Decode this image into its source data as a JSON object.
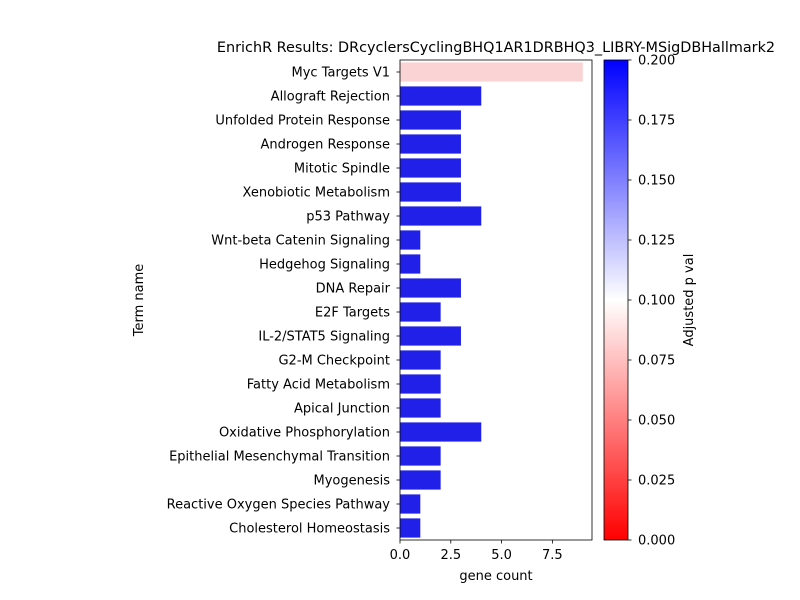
{
  "chart_data": {
    "type": "bar",
    "orientation": "horizontal",
    "title": "EnrichR Results: DRcyclersCyclingBHQ1AR1DRBHQ3_LIBRY-MSigDBHallmark2",
    "xlabel": "gene count",
    "ylabel": "Term name",
    "xlim": [
      0,
      9.45
    ],
    "xticks": [
      0,
      2.5,
      5,
      7.5
    ],
    "xtick_labels": [
      "0.0",
      "2.5",
      "5.0",
      "7.5"
    ],
    "grid": false,
    "categories": [
      "Myc Targets V1",
      "Allograft Rejection",
      "Unfolded Protein Response",
      "Androgen Response",
      "Mitotic Spindle",
      "Xenobiotic Metabolism",
      "p53 Pathway",
      "Wnt-beta Catenin Signaling",
      "Hedgehog Signaling",
      "DNA Repair",
      "E2F Targets",
      "IL-2/STAT5 Signaling",
      "G2-M Checkpoint",
      "Fatty Acid Metabolism",
      "Apical Junction",
      "Oxidative Phosphorylation",
      "Epithelial Mesenchymal Transition",
      "Myogenesis",
      "Reactive Oxygen Species Pathway",
      "Cholesterol Homeostasis"
    ],
    "values": [
      9,
      4,
      3,
      3,
      3,
      3,
      4,
      1,
      1,
      3,
      2,
      3,
      2,
      2,
      2,
      4,
      2,
      2,
      1,
      1
    ],
    "bar_colors": [
      "#fad4d4",
      "#2020e8",
      "#2020e8",
      "#2020e8",
      "#2020e8",
      "#2020e8",
      "#2020e8",
      "#2020e8",
      "#2020e8",
      "#2020e8",
      "#2020e8",
      "#2020e8",
      "#2020e8",
      "#2020e8",
      "#2020e8",
      "#2020e8",
      "#2020e8",
      "#2020e8",
      "#2020e8",
      "#2020e8"
    ],
    "colorbar": {
      "label": "Adjusted p val",
      "range": [
        0,
        0.2
      ],
      "ticks": [
        0,
        0.025,
        0.05,
        0.075,
        0.1,
        0.125,
        0.15,
        0.175,
        0.2
      ],
      "tick_labels": [
        "0.000",
        "0.025",
        "0.050",
        "0.075",
        "0.100",
        "0.125",
        "0.150",
        "0.175",
        "0.200"
      ],
      "colors": [
        "#ff0000",
        "#ffffff",
        "#0000ff"
      ]
    }
  }
}
